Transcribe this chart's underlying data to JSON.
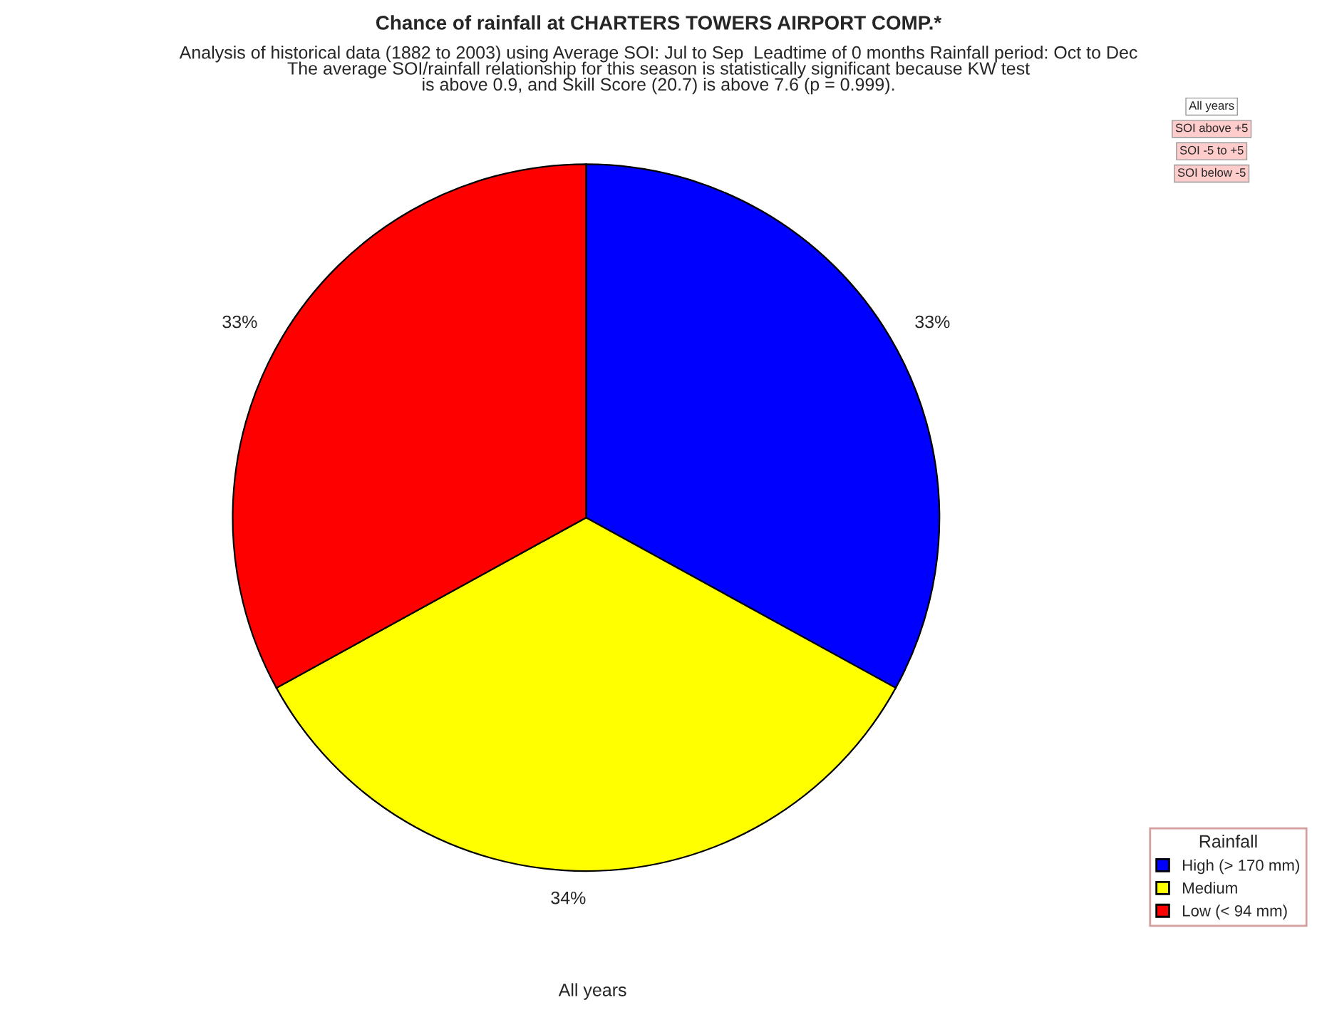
{
  "chart_data": {
    "type": "pie",
    "title": "Chance of rainfall at CHARTERS TOWERS AIRPORT COMP.*",
    "subtitle": "Analysis of historical data (1882 to 2003) using Average SOI: Jul to Sep  Leadtime of 0 months Rainfall period: Oct to Dec\nThe average SOI/rainfall relationship for this season is statistically significant because KW test\nis above 0.9, and Skill Score (20.7) is above 7.6 (p = 0.999).",
    "xlabel": "All years",
    "categories": [
      "High (> 170 mm)",
      "Medium",
      "Low (< 94 mm)"
    ],
    "values": [
      33,
      34,
      33
    ],
    "colors": [
      "#0000ff",
      "#ffff00",
      "#ff0000"
    ],
    "value_labels": [
      "33%",
      "34%",
      "33%"
    ],
    "legend_title": "Rainfall",
    "legend": "bottom right",
    "annotations": [
      "All years",
      "SOI above +5",
      "SOI -5 to +5",
      "SOI below -5"
    ]
  }
}
